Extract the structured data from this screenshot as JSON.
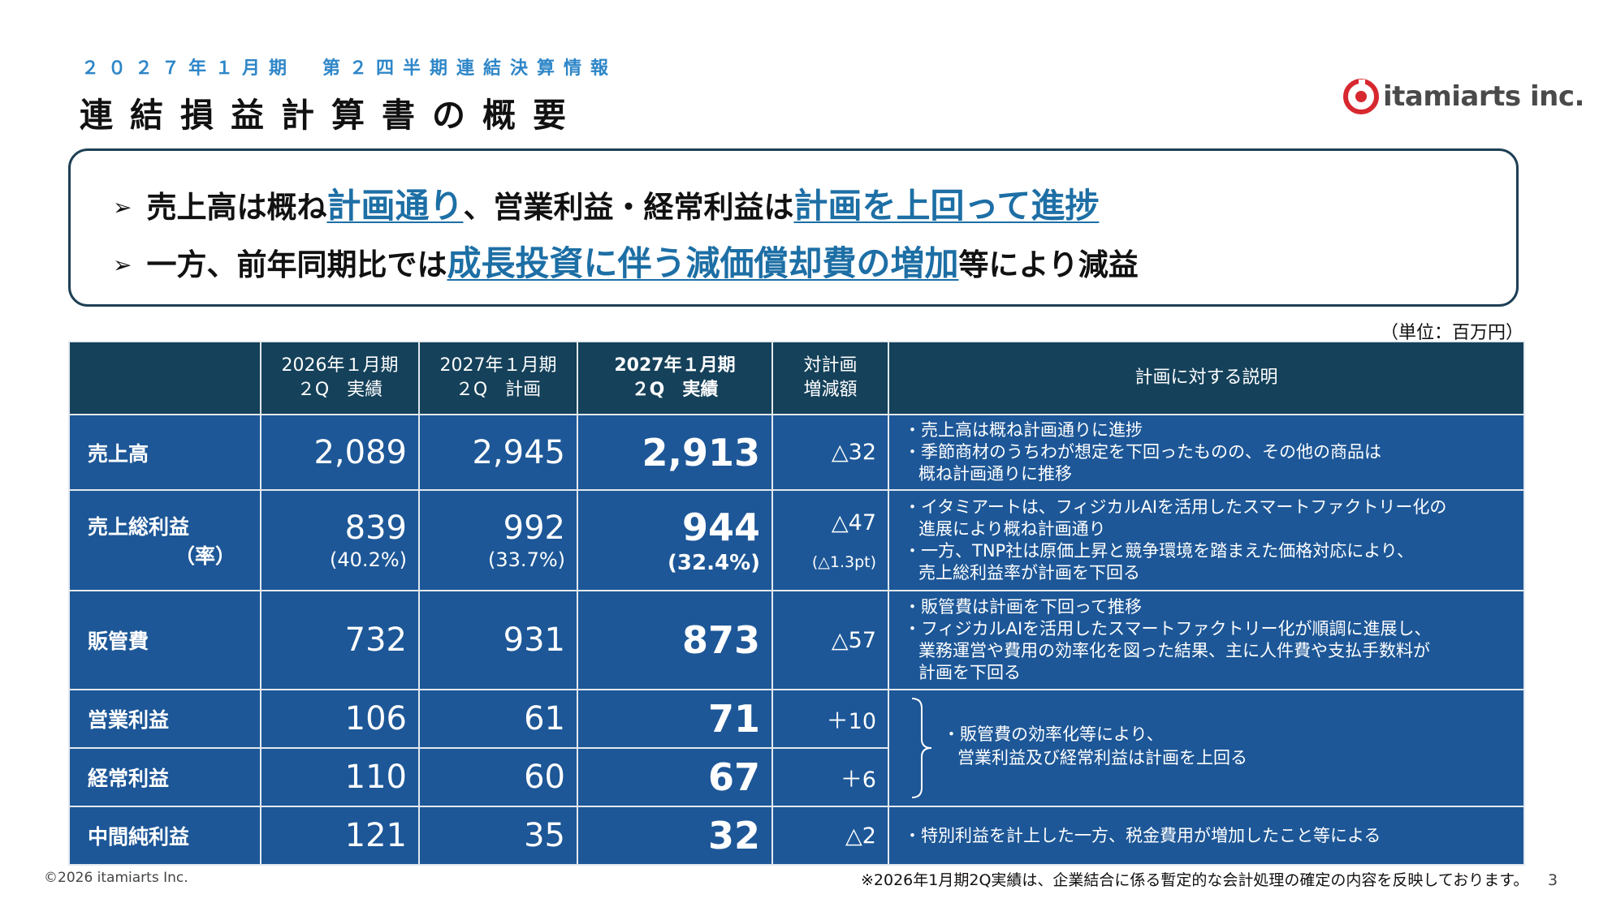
{
  "header": {
    "subtitle": "２０２７年１月期　第２四半期連結決算情報",
    "title": "連結損益計算書の概要",
    "logo_text": "itamiarts inc.",
    "logo_color": "#d7282f"
  },
  "summary": {
    "line1": {
      "arrow": "➢",
      "part1": "売上高は概ね",
      "hl1": "計画通り",
      "part2": "、営業利益・経常利益は",
      "hl2": "計画を上回って進捗"
    },
    "line2": {
      "arrow": "➢",
      "part1": "一方、前年同期比では",
      "hl1": "成長投資に伴う減価償却費の増加",
      "part2": "等により減益"
    }
  },
  "unit_note": "（単位：百万円）",
  "table": {
    "headers": {
      "prev_actual": [
        "2026年１月期",
        "２Q　実績"
      ],
      "plan": [
        "2027年１月期",
        "２Q　計画"
      ],
      "actual": [
        "2027年１月期",
        "２Q　実績"
      ],
      "vs_plan": [
        "対計画",
        "増減額"
      ],
      "explanation": "計画に対する説明"
    },
    "rows": [
      {
        "item": "売上高",
        "prev": "2,089",
        "plan": "2,945",
        "actual": "2,913",
        "diff": "△32",
        "notes": [
          "・売上高は概ね計画通りに進捗",
          "・季節商材のうちわが想定を下回ったものの、その他の商品は"
        ],
        "notes_cont": "概ね計画通りに推移"
      },
      {
        "item": "売上総利益",
        "item_sub": "（率）",
        "prev": "839",
        "prev_pct": "(40.2%)",
        "plan": "992",
        "plan_pct": "(33.7%)",
        "actual": "944",
        "actual_pct": "(32.4%)",
        "diff": "△47",
        "diff_pt": "(△1.3pt)",
        "notes": [
          "・イタミアートは、フィジカルAIを活用したスマートファクトリー化の",
          "・一方、TNP社は原価上昇と競争環境を踏まえた価格対応により、"
        ],
        "notes_cont": [
          "進展により概ね計画通り",
          "売上総利益率が計画を下回る"
        ]
      },
      {
        "item": "販管費",
        "prev": "732",
        "plan": "931",
        "actual": "873",
        "diff": "△57",
        "notes": [
          "・販管費は計画を下回って推移",
          "・フィジカルAIを活用したスマートファクトリー化が順調に進展し、"
        ],
        "notes_cont": [
          "業務運営や費用の効率化を図った結果、主に人件費や支払手数料が",
          "計画を下回る"
        ]
      },
      {
        "item": "営業利益",
        "prev": "106",
        "plan": "61",
        "actual": "71",
        "diff": "＋10"
      },
      {
        "item": "経常利益",
        "prev": "110",
        "plan": "60",
        "actual": "67",
        "diff": "＋6"
      },
      {
        "item": "中間純利益",
        "prev": "121",
        "plan": "35",
        "actual": "32",
        "diff": "△2",
        "notes": [
          "・特別利益を計上した一方、税金費用が増加したこと等による"
        ]
      }
    ],
    "shared_note": [
      "・販管費の効率化等により、",
      "営業利益及び経常利益は計画を上回る"
    ]
  },
  "footer": {
    "copyright": "©2026 itamiarts Inc.",
    "note": "※2026年1月期2Q実績は、企業結合に係る暫定的な会計処理の確定の内容を反映しております。",
    "page_number": "3"
  },
  "colors": {
    "header_bg": "#15415a",
    "body_bg": "#1d5797",
    "accent": "#1d6fa5",
    "subtitle": "#2e86c8"
  }
}
